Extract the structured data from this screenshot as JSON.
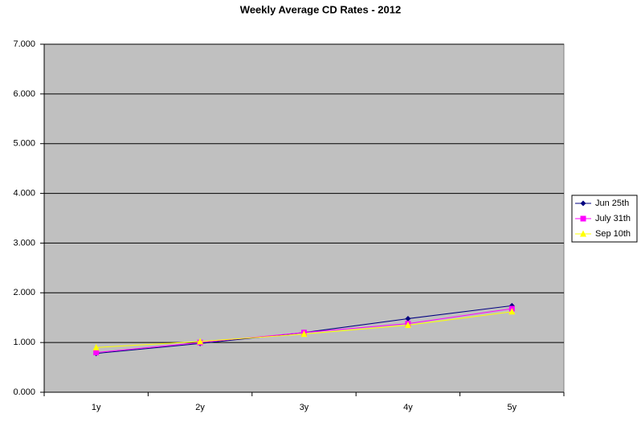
{
  "chart_data": {
    "type": "line",
    "title": "Weekly Average CD Rates - 2012",
    "categories": [
      "1y",
      "2y",
      "3y",
      "4y",
      "5y"
    ],
    "series": [
      {
        "name": "Jun 25th",
        "color": "#000080",
        "marker": "diamond",
        "values": [
          0.78,
          0.98,
          1.2,
          1.48,
          1.74
        ]
      },
      {
        "name": "July 31th",
        "color": "#ff00ff",
        "marker": "square",
        "values": [
          0.8,
          1.0,
          1.2,
          1.38,
          1.68
        ]
      },
      {
        "name": "Sep 10th",
        "color": "#ffff00",
        "marker": "triangle",
        "values": [
          0.9,
          1.02,
          1.17,
          1.35,
          1.62
        ]
      }
    ],
    "ylim": [
      0,
      7
    ],
    "yticks": [
      {
        "value": 0,
        "label": "0.000"
      },
      {
        "value": 1,
        "label": "1.000"
      },
      {
        "value": 2,
        "label": "2.000"
      },
      {
        "value": 3,
        "label": "3.000"
      },
      {
        "value": 4,
        "label": "4.000"
      },
      {
        "value": 5,
        "label": "5.000"
      },
      {
        "value": 6,
        "label": "6.000"
      },
      {
        "value": 7,
        "label": "7.000"
      }
    ],
    "grid": true,
    "legend": "right",
    "plot_background": "#c0c0c0"
  }
}
